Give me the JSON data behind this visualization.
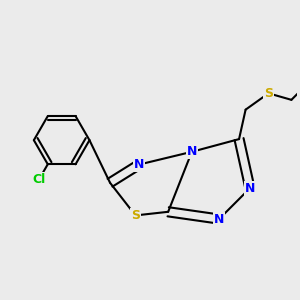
{
  "bg_color": "#ebebeb",
  "atom_colors": {
    "C": "#000000",
    "N": "#0000ff",
    "S": "#ccaa00",
    "Cl": "#00cc00"
  },
  "bond_color": "#000000",
  "bond_width": 1.5,
  "font_size_atom": 9
}
